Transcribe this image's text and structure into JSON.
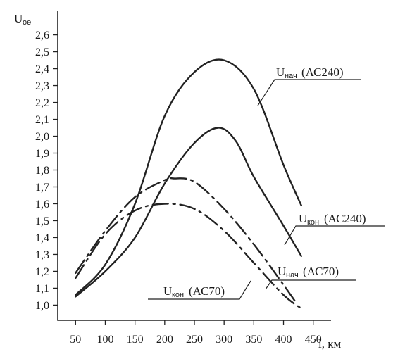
{
  "chart_data": {
    "type": "line",
    "ylabel": "U",
    "ylabel_sub": "ое",
    "xlabel": "l, км",
    "xlim": [
      20,
      480
    ],
    "ylim": [
      0.91,
      2.74
    ],
    "x_ticks": [
      "50",
      "100",
      "150",
      "200",
      "250",
      "300",
      "350",
      "400",
      "450"
    ],
    "y_ticks": [
      "1,0",
      "1,1",
      "1,2",
      "1,3",
      "1,4",
      "1,5",
      "1,6",
      "1,7",
      "1,8",
      "1,9",
      "2,0",
      "2,1",
      "2,2",
      "2,3",
      "2,4",
      "2,5",
      "2,6"
    ],
    "series": [
      {
        "name": "Uнач (АС240)",
        "label_main": "U",
        "label_sub": "нач",
        "label_rest": " (АС240)",
        "style": "solid",
        "x": [
          50,
          100,
          150,
          200,
          250,
          300,
          350,
          400,
          430
        ],
        "y": [
          1.06,
          1.24,
          1.6,
          2.12,
          2.38,
          2.45,
          2.28,
          1.83,
          1.59
        ]
      },
      {
        "name": "Uкон (АС240)",
        "label_main": "U",
        "label_sub": "кон",
        "label_rest": " (АС240)",
        "style": "solid",
        "x": [
          50,
          100,
          150,
          200,
          250,
          290,
          320,
          350,
          400,
          430
        ],
        "y": [
          1.05,
          1.2,
          1.4,
          1.72,
          1.96,
          2.05,
          1.97,
          1.76,
          1.47,
          1.29
        ]
      },
      {
        "name": "Uнач (АС70)",
        "label_main": "U",
        "label_sub": "нач",
        "label_rest": " (АС70)",
        "style": "dashdot",
        "x": [
          50,
          100,
          150,
          200,
          215,
          250,
          300,
          350,
          400,
          420
        ],
        "y": [
          1.19,
          1.44,
          1.64,
          1.74,
          1.75,
          1.73,
          1.57,
          1.36,
          1.12,
          1.02
        ]
      },
      {
        "name": "Uкон (АС70)",
        "label_main": "U",
        "label_sub": "кон",
        "label_rest": " (АС70)",
        "style": "dashdot",
        "x": [
          50,
          100,
          150,
          200,
          250,
          300,
          350,
          400,
          430
        ],
        "y": [
          1.16,
          1.42,
          1.56,
          1.6,
          1.57,
          1.44,
          1.25,
          1.06,
          0.98
        ]
      }
    ]
  }
}
